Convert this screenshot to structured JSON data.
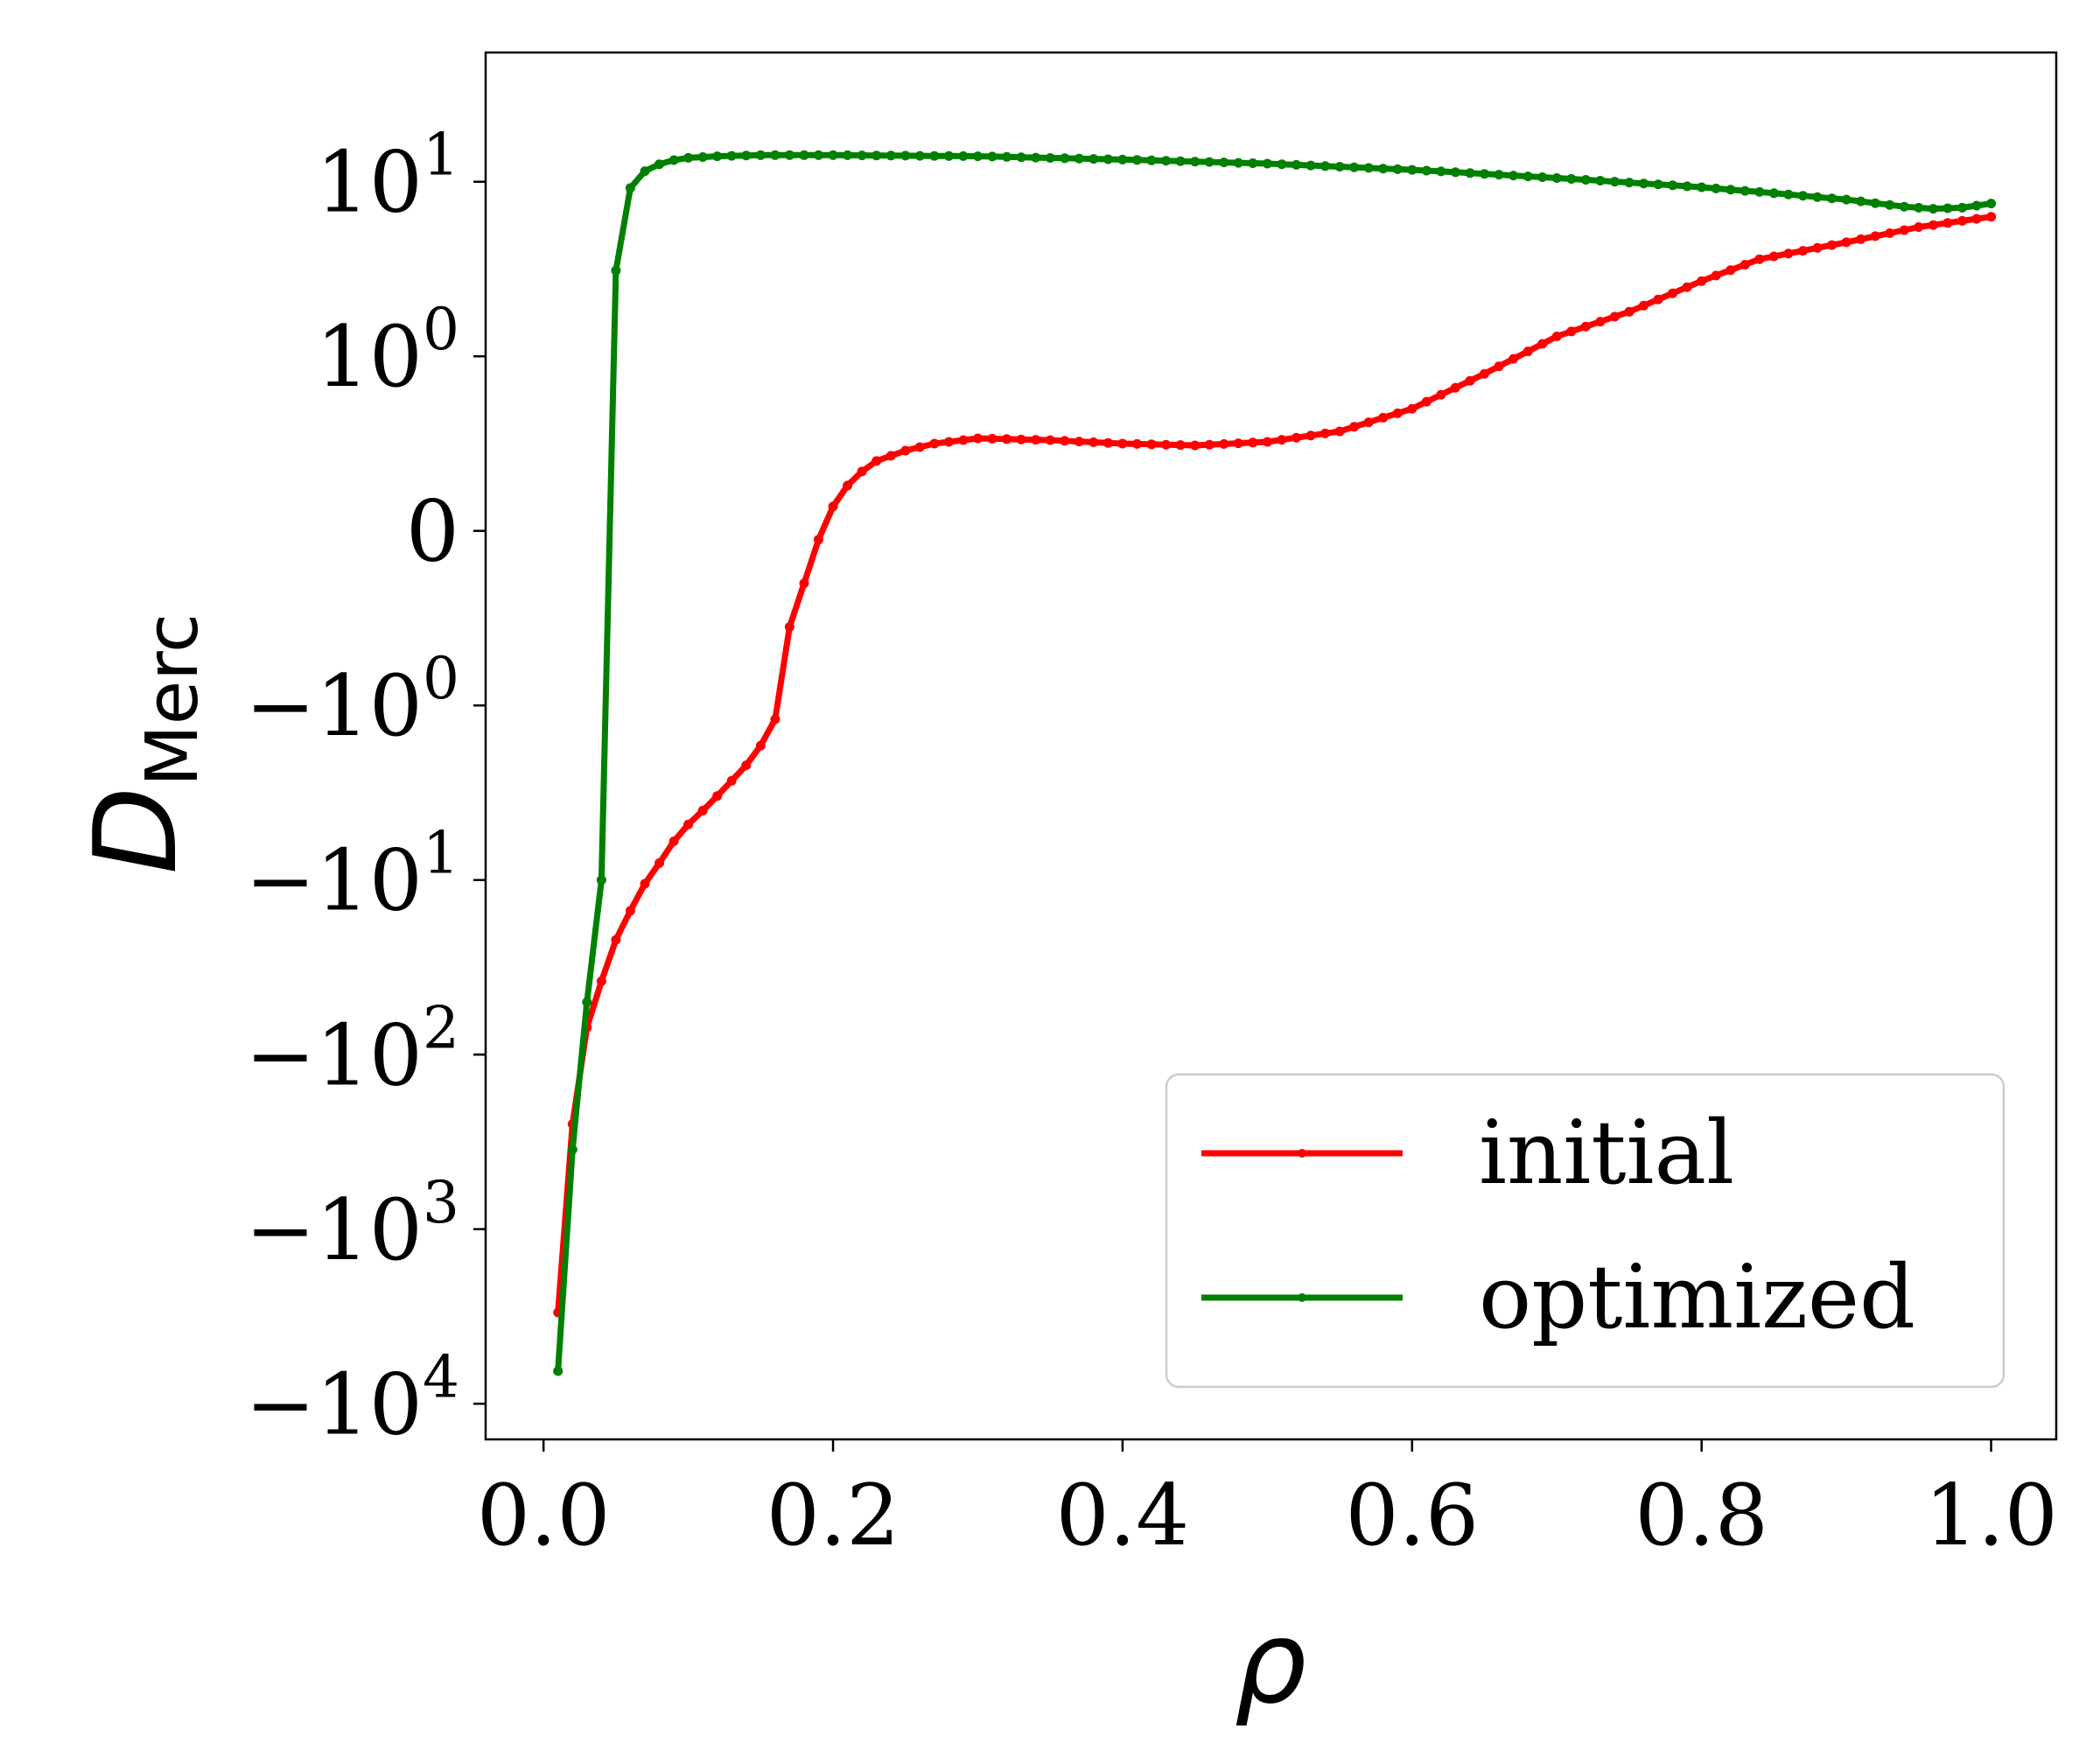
{
  "chart_data": {
    "type": "line",
    "xlabel": "ρ",
    "ylabel": {
      "base": "D",
      "subscript": "Merc"
    },
    "xlim": [
      -0.04,
      1.045
    ],
    "ylim": [
      -16000,
      55
    ],
    "yscale": "symlog",
    "grid": false,
    "legend_position": "lower-right",
    "x_ticks": [
      {
        "value": 0.0,
        "label": "0.0"
      },
      {
        "value": 0.2,
        "label": "0.2"
      },
      {
        "value": 0.4,
        "label": "0.4"
      },
      {
        "value": 0.6,
        "label": "0.6"
      },
      {
        "value": 0.8,
        "label": "0.8"
      },
      {
        "value": 1.0,
        "label": "1.0"
      }
    ],
    "y_ticks": [
      {
        "value": 10,
        "base": "10",
        "exp": "1"
      },
      {
        "value": 1,
        "base": "10",
        "exp": "0"
      },
      {
        "value": 0,
        "base": "0",
        "exp": ""
      },
      {
        "value": -1,
        "base": "−10",
        "exp": "0"
      },
      {
        "value": -10,
        "base": "−10",
        "exp": "1"
      },
      {
        "value": -100,
        "base": "−10",
        "exp": "2"
      },
      {
        "value": -1000,
        "base": "−10",
        "exp": "3"
      },
      {
        "value": -10000,
        "base": "−10",
        "exp": "4"
      }
    ],
    "series": [
      {
        "name": "initial",
        "color": "#ff0000",
        "key_points": [
          [
            0.01,
            -3000
          ],
          [
            0.02,
            -250
          ],
          [
            0.03,
            -70
          ],
          [
            0.04,
            -38
          ],
          [
            0.05,
            -22
          ],
          [
            0.06,
            -15
          ],
          [
            0.07,
            -10.5
          ],
          [
            0.08,
            -8
          ],
          [
            0.09,
            -6
          ],
          [
            0.1,
            -4.8
          ],
          [
            0.11,
            -4
          ],
          [
            0.12,
            -3.3
          ],
          [
            0.13,
            -2.7
          ],
          [
            0.14,
            -2.2
          ],
          [
            0.15,
            -1.7
          ],
          [
            0.16,
            -1.2
          ],
          [
            0.17,
            -0.55
          ],
          [
            0.18,
            -0.3
          ],
          [
            0.19,
            -0.05
          ],
          [
            0.2,
            0.14
          ],
          [
            0.21,
            0.26
          ],
          [
            0.22,
            0.34
          ],
          [
            0.23,
            0.4
          ],
          [
            0.25,
            0.46
          ],
          [
            0.27,
            0.5
          ],
          [
            0.3,
            0.53
          ],
          [
            0.35,
            0.52
          ],
          [
            0.4,
            0.5
          ],
          [
            0.45,
            0.49
          ],
          [
            0.5,
            0.51
          ],
          [
            0.55,
            0.57
          ],
          [
            0.6,
            0.7
          ],
          [
            0.65,
            0.9
          ],
          [
            0.7,
            1.3
          ],
          [
            0.75,
            1.8
          ],
          [
            0.8,
            2.7
          ],
          [
            0.84,
            3.6
          ],
          [
            0.9,
            4.5
          ],
          [
            0.95,
            5.5
          ],
          [
            1.0,
            6.3
          ]
        ]
      },
      {
        "name": "optimized",
        "color": "#008000",
        "key_points": [
          [
            0.01,
            -6500
          ],
          [
            0.02,
            -350
          ],
          [
            0.03,
            -50
          ],
          [
            0.04,
            -10
          ],
          [
            0.05,
            3.1
          ],
          [
            0.06,
            9.2
          ],
          [
            0.07,
            11.5
          ],
          [
            0.08,
            12.6
          ],
          [
            0.09,
            13.3
          ],
          [
            0.1,
            13.7
          ],
          [
            0.12,
            14.0
          ],
          [
            0.15,
            14.2
          ],
          [
            0.2,
            14.2
          ],
          [
            0.3,
            14.0
          ],
          [
            0.4,
            13.4
          ],
          [
            0.5,
            12.7
          ],
          [
            0.55,
            12.2
          ],
          [
            0.6,
            11.7
          ],
          [
            0.65,
            11.1
          ],
          [
            0.7,
            10.5
          ],
          [
            0.75,
            9.9
          ],
          [
            0.8,
            9.3
          ],
          [
            0.85,
            8.6
          ],
          [
            0.9,
            7.9
          ],
          [
            0.94,
            7.2
          ],
          [
            0.96,
            7.0
          ],
          [
            0.98,
            7.1
          ],
          [
            1.0,
            7.5
          ]
        ]
      }
    ]
  }
}
